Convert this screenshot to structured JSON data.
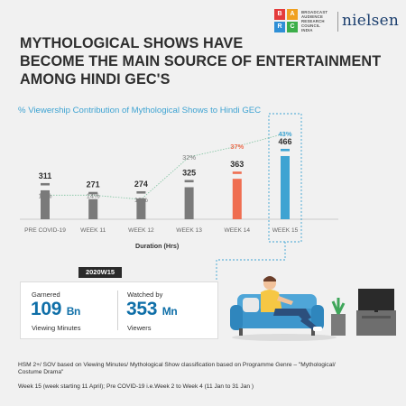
{
  "logos": {
    "barc_letters": [
      "B",
      "A",
      "R",
      "C"
    ],
    "barc_text": [
      "BROADCAST",
      "AUDIENCE",
      "RESEARCH",
      "COUNCIL",
      "INDIA"
    ],
    "nielsen": "nielsen"
  },
  "headline": [
    "MYTHOLOGICAL SHOWS HAVE",
    "BECOME THE MAIN SOURCE OF ENTERTAINMENT",
    "AMONG HINDI GEC'S"
  ],
  "colors": {
    "grey_bar": "#7a7a7a",
    "orange_bar": "#ef6d50",
    "blue_bar": "#3ea3d2",
    "title_blue": "#3ea3d2",
    "stat_blue": "#0f6fa8"
  },
  "chart_data": {
    "type": "bar",
    "title": "% Viewership Contribution of Mythological Shows to Hindi GEC",
    "categories": [
      "PRE COVID-19",
      "WEEK 11",
      "WEEK 12",
      "WEEK 13",
      "WEEK 14",
      "WEEK 15"
    ],
    "series": [
      {
        "values": [
          311,
          271,
          274,
          325,
          363,
          466
        ]
      },
      {
        "values": [
          14,
          14,
          12,
          32,
          37,
          43
        ],
        "unit": "%"
      }
    ],
    "xlabel": "Duration (Hrs)",
    "bar_colors": [
      "grey",
      "grey",
      "grey",
      "grey",
      "orange",
      "blue"
    ]
  },
  "stats": {
    "tag": "2020W15",
    "left": {
      "caption": "Garnered",
      "number": "109",
      "unit": "Bn",
      "subcaption": "Viewing Minutes"
    },
    "right": {
      "caption": "Watched by",
      "number": "353",
      "unit": "Mn",
      "subcaption": "Viewers"
    }
  },
  "footnotes": [
    "HSM 2+/ SOV based on Viewing Minutes/ Mythological Show classification based on Programme Genre – \"Mythological/",
    "Costume Drama\"",
    "Week 15 (week starting 11 April); Pre COVID-19 i.e.Week 2 to Week 4 (11 Jan to 31 Jan )"
  ]
}
